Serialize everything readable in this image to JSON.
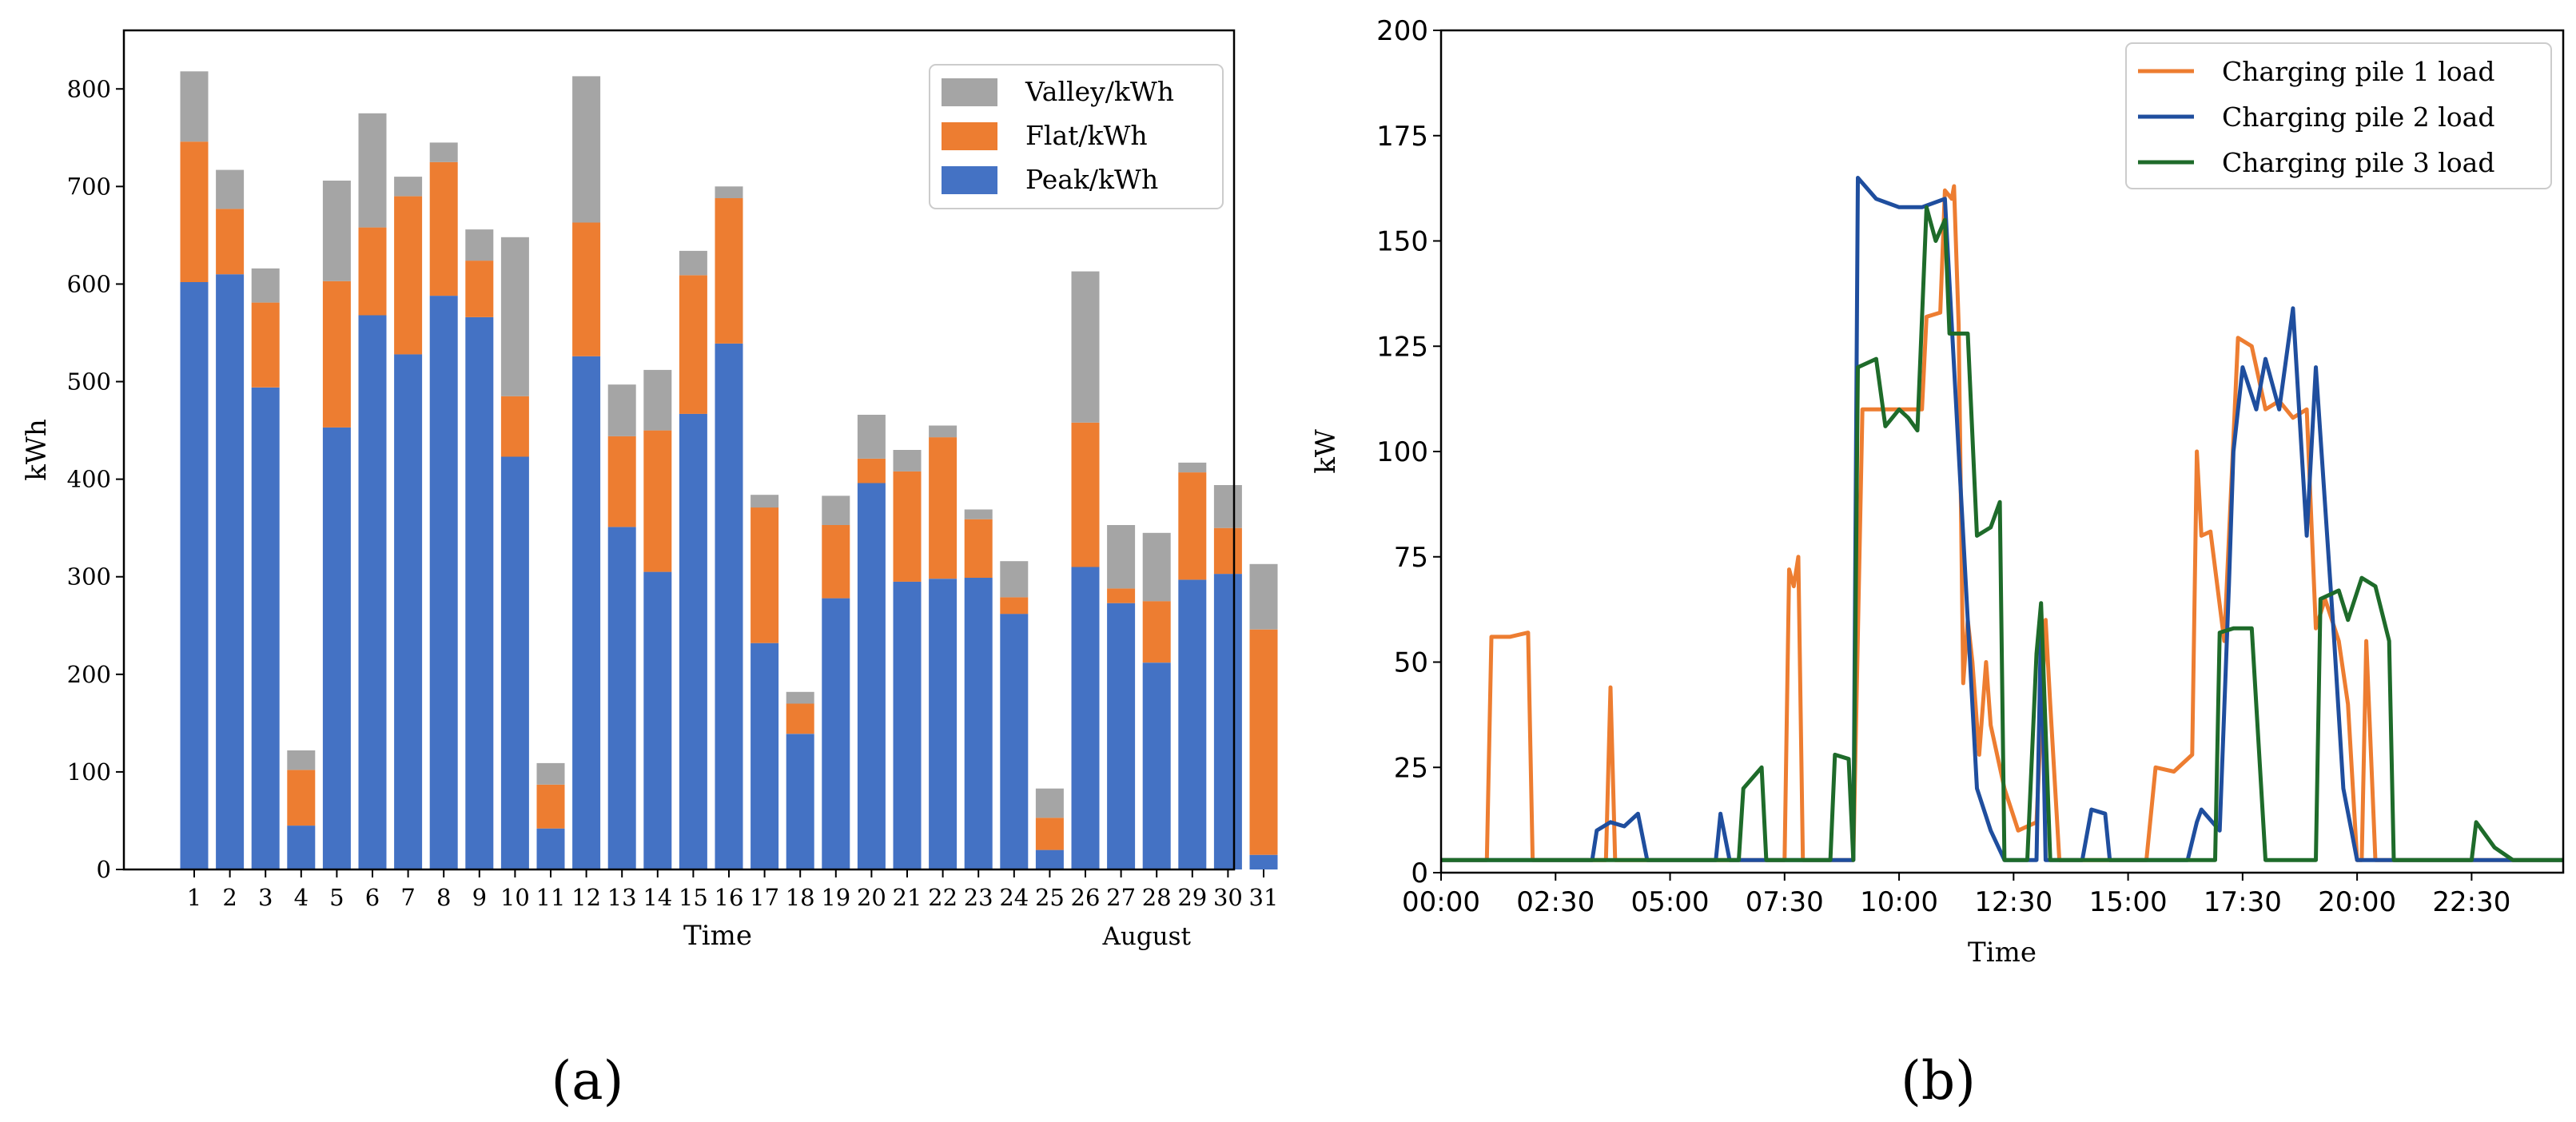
{
  "chart_data": [
    {
      "type": "bar",
      "stacked": true,
      "caption": "(a)",
      "xlabel": "Time",
      "ylabel": "kWh",
      "x_annotation": "August",
      "ylim": [
        0,
        860
      ],
      "yticks": [
        0,
        100,
        200,
        300,
        400,
        500,
        600,
        700,
        800
      ],
      "categories": [
        "1",
        "2",
        "3",
        "4",
        "5",
        "6",
        "7",
        "8",
        "9",
        "10",
        "11",
        "12",
        "13",
        "14",
        "15",
        "16",
        "17",
        "18",
        "19",
        "20",
        "21",
        "22",
        "23",
        "24",
        "25",
        "26",
        "27",
        "28",
        "29",
        "30",
        "31"
      ],
      "legend_position": "top-right",
      "series": [
        {
          "name": "Valley/kWh",
          "color": "#a5a5a5",
          "values": [
            72,
            40,
            35,
            20,
            103,
            117,
            20,
            20,
            32,
            163,
            22,
            150,
            53,
            62,
            25,
            12,
            13,
            12,
            30,
            45,
            22,
            12,
            10,
            37,
            30,
            155,
            65,
            70,
            10,
            44,
            67
          ]
        },
        {
          "name": "Flat/kWh",
          "color": "#ed7d31",
          "values": [
            144,
            67,
            87,
            57,
            150,
            90,
            162,
            137,
            58,
            62,
            45,
            137,
            93,
            145,
            142,
            149,
            139,
            31,
            75,
            25,
            113,
            145,
            60,
            17,
            33,
            148,
            15,
            63,
            110,
            47,
            231
          ]
        },
        {
          "name": "Peak/kWh",
          "color": "#4472c4",
          "values": [
            602,
            610,
            494,
            45,
            453,
            568,
            528,
            588,
            566,
            423,
            42,
            526,
            351,
            305,
            467,
            539,
            232,
            139,
            278,
            396,
            295,
            298,
            299,
            262,
            20,
            310,
            273,
            212,
            297,
            303,
            15
          ]
        }
      ]
    },
    {
      "type": "line",
      "caption": "(b)",
      "xlabel": "Time",
      "ylabel": "kW",
      "ylim": [
        0,
        200
      ],
      "xlim_hours": [
        0,
        24.5
      ],
      "yticks": [
        0,
        25,
        50,
        75,
        100,
        125,
        150,
        175,
        200
      ],
      "xticks": [
        "00:00",
        "02:30",
        "05:00",
        "07:30",
        "10:00",
        "12:30",
        "15:00",
        "17:30",
        "20:00",
        "22:30"
      ],
      "legend_position": "top-right",
      "series": [
        {
          "name": "Charging pile 1 load",
          "color": "#ed7d31",
          "points": [
            [
              0,
              3
            ],
            [
              1,
              3
            ],
            [
              1.1,
              56
            ],
            [
              1.5,
              56
            ],
            [
              1.9,
              57
            ],
            [
              2.0,
              3
            ],
            [
              3,
              3
            ],
            [
              3.6,
              3
            ],
            [
              3.7,
              44
            ],
            [
              3.8,
              3
            ],
            [
              5,
              3
            ],
            [
              6,
              3
            ],
            [
              7.5,
              3
            ],
            [
              7.6,
              72
            ],
            [
              7.7,
              68
            ],
            [
              7.8,
              75
            ],
            [
              7.9,
              3
            ],
            [
              9,
              3
            ],
            [
              9.2,
              110
            ],
            [
              10,
              110
            ],
            [
              10.5,
              110
            ],
            [
              10.6,
              132
            ],
            [
              10.9,
              133
            ],
            [
              11.0,
              162
            ],
            [
              11.15,
              160
            ],
            [
              11.2,
              163
            ],
            [
              11.3,
              130
            ],
            [
              11.4,
              45
            ],
            [
              11.5,
              60
            ],
            [
              11.6,
              50
            ],
            [
              11.75,
              28
            ],
            [
              11.9,
              50
            ],
            [
              12.0,
              35
            ],
            [
              12.3,
              20
            ],
            [
              12.6,
              10
            ],
            [
              13.0,
              12
            ],
            [
              13.2,
              60
            ],
            [
              13.3,
              40
            ],
            [
              13.5,
              3
            ],
            [
              15,
              3
            ],
            [
              15.4,
              3
            ],
            [
              15.6,
              25
            ],
            [
              16,
              24
            ],
            [
              16.4,
              28
            ],
            [
              16.5,
              100
            ],
            [
              16.6,
              80
            ],
            [
              16.8,
              81
            ],
            [
              17.1,
              55
            ],
            [
              17.4,
              127
            ],
            [
              17.7,
              125
            ],
            [
              18.0,
              110
            ],
            [
              18.3,
              112
            ],
            [
              18.6,
              108
            ],
            [
              18.9,
              110
            ],
            [
              19.1,
              58
            ],
            [
              19.3,
              65
            ],
            [
              19.6,
              55
            ],
            [
              19.8,
              40
            ],
            [
              20.0,
              3
            ],
            [
              20.1,
              3
            ],
            [
              20.2,
              55
            ],
            [
              20.4,
              3
            ],
            [
              22,
              3
            ],
            [
              24.5,
              3
            ]
          ]
        },
        {
          "name": "Charging pile 2 load",
          "color": "#1f4e9e",
          "points": [
            [
              0,
              3
            ],
            [
              3,
              3
            ],
            [
              3.3,
              3
            ],
            [
              3.4,
              10
            ],
            [
              3.7,
              12
            ],
            [
              4.0,
              11
            ],
            [
              4.3,
              14
            ],
            [
              4.5,
              3
            ],
            [
              6,
              3
            ],
            [
              6.1,
              14
            ],
            [
              6.3,
              3
            ],
            [
              8,
              3
            ],
            [
              8.3,
              3
            ],
            [
              9.0,
              3
            ],
            [
              9.1,
              165
            ],
            [
              9.5,
              160
            ],
            [
              10,
              158
            ],
            [
              10.5,
              158
            ],
            [
              11.0,
              160
            ],
            [
              11.3,
              100
            ],
            [
              11.5,
              60
            ],
            [
              11.7,
              20
            ],
            [
              12.0,
              10
            ],
            [
              12.3,
              3
            ],
            [
              13,
              3
            ],
            [
              13.1,
              60
            ],
            [
              13.2,
              3
            ],
            [
              14,
              3
            ],
            [
              14.2,
              15
            ],
            [
              14.5,
              14
            ],
            [
              14.6,
              3
            ],
            [
              15.5,
              3
            ],
            [
              16.3,
              3
            ],
            [
              16.5,
              12
            ],
            [
              16.6,
              15
            ],
            [
              17.0,
              10
            ],
            [
              17.2,
              68
            ],
            [
              17.3,
              100
            ],
            [
              17.5,
              120
            ],
            [
              17.8,
              110
            ],
            [
              18.0,
              122
            ],
            [
              18.3,
              110
            ],
            [
              18.6,
              134
            ],
            [
              18.9,
              80
            ],
            [
              19.1,
              120
            ],
            [
              19.5,
              55
            ],
            [
              19.7,
              20
            ],
            [
              20.0,
              3
            ],
            [
              20.5,
              3
            ],
            [
              22,
              3
            ],
            [
              24.5,
              3
            ]
          ]
        },
        {
          "name": "Charging pile 3 load",
          "color": "#1e6b2a",
          "points": [
            [
              0,
              3
            ],
            [
              2,
              3
            ],
            [
              3,
              3
            ],
            [
              5,
              3
            ],
            [
              6,
              3
            ],
            [
              6.5,
              3
            ],
            [
              6.6,
              20
            ],
            [
              7.0,
              25
            ],
            [
              7.1,
              3
            ],
            [
              8,
              3
            ],
            [
              8.5,
              3
            ],
            [
              8.6,
              28
            ],
            [
              8.9,
              27
            ],
            [
              9.0,
              3
            ],
            [
              9.1,
              120
            ],
            [
              9.5,
              122
            ],
            [
              9.7,
              106
            ],
            [
              10.0,
              110
            ],
            [
              10.2,
              108
            ],
            [
              10.4,
              105
            ],
            [
              10.6,
              158
            ],
            [
              10.8,
              150
            ],
            [
              11.0,
              155
            ],
            [
              11.1,
              128
            ],
            [
              11.5,
              128
            ],
            [
              11.7,
              80
            ],
            [
              12.0,
              82
            ],
            [
              12.2,
              88
            ],
            [
              12.3,
              3
            ],
            [
              12.6,
              3
            ],
            [
              12.8,
              3
            ],
            [
              13.0,
              52
            ],
            [
              13.1,
              64
            ],
            [
              13.3,
              3
            ],
            [
              14,
              3
            ],
            [
              14.6,
              3
            ],
            [
              15,
              3
            ],
            [
              16.5,
              3
            ],
            [
              16.9,
              3
            ],
            [
              17.0,
              57
            ],
            [
              17.3,
              58
            ],
            [
              17.7,
              58
            ],
            [
              18.0,
              3
            ],
            [
              19.1,
              3
            ],
            [
              19.2,
              65
            ],
            [
              19.6,
              67
            ],
            [
              19.8,
              60
            ],
            [
              20.1,
              70
            ],
            [
              20.4,
              68
            ],
            [
              20.7,
              55
            ],
            [
              20.8,
              3
            ],
            [
              21.5,
              3
            ],
            [
              22.5,
              3
            ],
            [
              22.6,
              12
            ],
            [
              23.0,
              6
            ],
            [
              23.4,
              3
            ],
            [
              24.5,
              3
            ]
          ]
        }
      ]
    }
  ]
}
